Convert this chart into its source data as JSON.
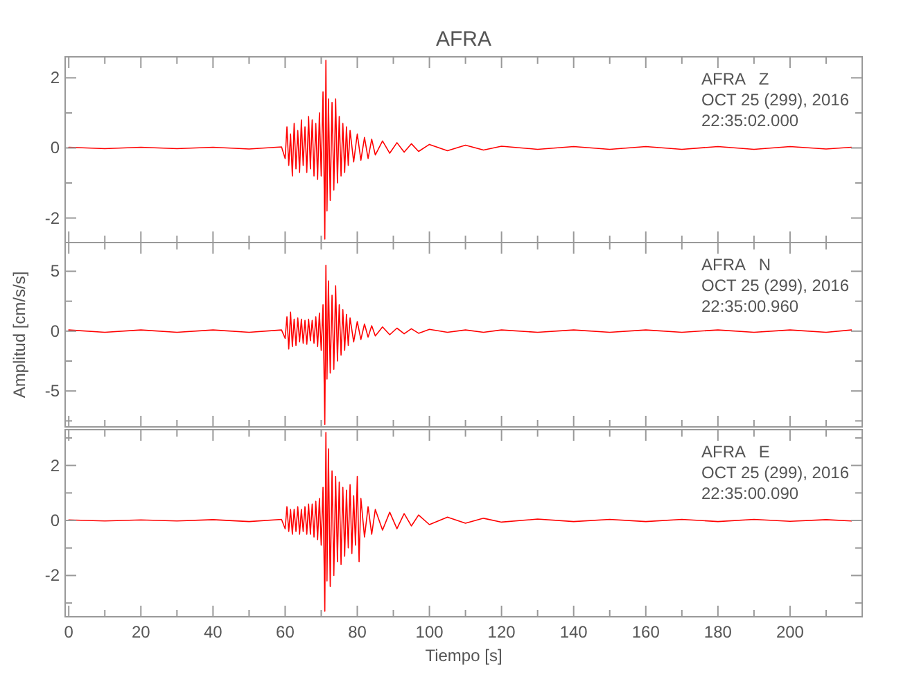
{
  "chart_data": [
    {
      "type": "line",
      "title": "AFRA",
      "annotations": [
        "AFRA   Z",
        "OCT 25 (299), 2016",
        "22:35:02.000"
      ],
      "xlim": [
        -1,
        220
      ],
      "ylim": [
        -2.7,
        2.6
      ],
      "tick_labels": "y",
      "grid": false,
      "xticks": [
        0,
        {
          "value": 10,
          "label": null
        },
        20,
        {
          "value": 30,
          "label": null
        },
        40,
        {
          "value": 50,
          "label": null
        },
        60,
        {
          "value": 70,
          "label": null
        },
        80,
        {
          "value": 90,
          "label": null
        },
        100,
        {
          "value": 110,
          "label": null
        },
        120,
        {
          "value": 130,
          "label": null
        },
        140,
        {
          "value": 150,
          "label": null
        },
        160,
        {
          "value": 170,
          "label": null
        },
        180,
        {
          "value": 190,
          "label": null
        },
        200,
        {
          "value": 210,
          "label": null
        }
      ],
      "yticks": [
        -2,
        {
          "value": -1,
          "label": null
        },
        0,
        {
          "value": 1,
          "label": null
        },
        2
      ],
      "series": [
        {
          "color": "#ff0000",
          "x": [
            0,
            10,
            20,
            30,
            40,
            50,
            59,
            60,
            60.5,
            61,
            61.5,
            62,
            62.5,
            63,
            63.5,
            64,
            64.5,
            65,
            65.5,
            66,
            66.5,
            67,
            67.5,
            68,
            68.5,
            69,
            69.5,
            70,
            70.5,
            71,
            71.3,
            71.6,
            72,
            72.5,
            73,
            73.5,
            74,
            74.5,
            75,
            75.5,
            76,
            76.5,
            77,
            77.5,
            78,
            79,
            80,
            81,
            82,
            83,
            84,
            85,
            87,
            89,
            91,
            93,
            95,
            97,
            100,
            105,
            110,
            115,
            120,
            130,
            140,
            150,
            160,
            170,
            180,
            190,
            200,
            210,
            217
          ],
          "values": [
            0.02,
            -0.02,
            0.02,
            -0.02,
            0.02,
            -0.03,
            0.03,
            -0.3,
            0.6,
            -0.5,
            0.4,
            -0.8,
            0.7,
            -0.6,
            0.5,
            -0.7,
            0.8,
            -0.5,
            0.6,
            -0.7,
            0.9,
            -0.6,
            0.8,
            -0.8,
            0.7,
            -0.9,
            1.0,
            -0.8,
            1.6,
            -2.6,
            2.5,
            -1.8,
            1.4,
            -1.5,
            1.3,
            -1.2,
            1.4,
            -1.0,
            0.9,
            -0.8,
            0.7,
            -0.7,
            0.6,
            -0.5,
            0.5,
            -0.4,
            0.4,
            -0.35,
            0.3,
            -0.3,
            0.25,
            -0.2,
            0.2,
            -0.15,
            0.15,
            -0.12,
            0.12,
            -0.1,
            0.1,
            -0.08,
            0.08,
            -0.06,
            0.05,
            -0.04,
            0.04,
            -0.04,
            0.04,
            -0.04,
            0.04,
            -0.04,
            0.04,
            -0.03,
            0.02
          ]
        }
      ]
    },
    {
      "type": "line",
      "ylabel": "Amplitud [cm/s/s]",
      "annotations": [
        "AFRA   N",
        "OCT 25 (299), 2016",
        "22:35:00.960"
      ],
      "xlim": [
        -1,
        220
      ],
      "ylim": [
        -8,
        7.4
      ],
      "tick_labels": "y",
      "grid": false,
      "xticks": [
        0,
        {
          "value": 10,
          "label": null
        },
        20,
        {
          "value": 30,
          "label": null
        },
        40,
        {
          "value": 50,
          "label": null
        },
        60,
        {
          "value": 70,
          "label": null
        },
        80,
        {
          "value": 90,
          "label": null
        },
        100,
        {
          "value": 110,
          "label": null
        },
        120,
        {
          "value": 130,
          "label": null
        },
        140,
        {
          "value": 150,
          "label": null
        },
        160,
        {
          "value": 170,
          "label": null
        },
        180,
        {
          "value": 190,
          "label": null
        },
        200,
        {
          "value": 210,
          "label": null
        }
      ],
      "yticks": [
        {
          "value": -7.5,
          "label": null
        },
        -5,
        {
          "value": -2.5,
          "label": null
        },
        0,
        {
          "value": 2.5,
          "label": null
        },
        5
      ],
      "series": [
        {
          "color": "#ff0000",
          "x": [
            0,
            10,
            20,
            30,
            40,
            50,
            59,
            60,
            60.5,
            61,
            61.5,
            62,
            62.5,
            63,
            63.5,
            64,
            64.5,
            65,
            65.5,
            66,
            66.5,
            67,
            67.5,
            68,
            68.5,
            69,
            69.5,
            70,
            70.5,
            71,
            71.3,
            71.6,
            72,
            72.5,
            73,
            73.5,
            74,
            74.5,
            75,
            75.5,
            76,
            76.5,
            77,
            77.5,
            78,
            79,
            80,
            81,
            82,
            83,
            84,
            85,
            87,
            89,
            91,
            93,
            95,
            97,
            100,
            105,
            110,
            115,
            120,
            130,
            140,
            150,
            160,
            170,
            180,
            190,
            200,
            210,
            217
          ],
          "values": [
            0.1,
            -0.1,
            0.1,
            -0.1,
            0.1,
            -0.1,
            0.1,
            -0.6,
            1.2,
            -1.5,
            1.6,
            -1.3,
            1.0,
            -1.2,
            1.1,
            -0.9,
            1.0,
            -1.0,
            0.9,
            -1.1,
            1.0,
            -0.8,
            0.9,
            -1.0,
            1.2,
            -1.3,
            1.5,
            -1.6,
            2.2,
            -7.8,
            5.5,
            -4.0,
            4.2,
            -3.5,
            3.0,
            -3.2,
            3.8,
            -2.5,
            2.2,
            -2.0,
            1.8,
            -1.6,
            1.4,
            -1.2,
            1.1,
            -0.9,
            0.8,
            -0.7,
            0.6,
            -0.5,
            0.45,
            -0.4,
            0.35,
            -0.3,
            0.25,
            -0.22,
            0.2,
            -0.18,
            0.15,
            -0.1,
            0.1,
            -0.1,
            0.1,
            -0.1,
            0.1,
            -0.1,
            0.1,
            -0.1,
            0.1,
            -0.1,
            0.1,
            -0.1,
            0.1
          ]
        }
      ]
    },
    {
      "type": "line",
      "xlabel": "Tiempo [s]",
      "annotations": [
        "AFRA   E",
        "OCT 25 (299), 2016",
        "22:35:00.090"
      ],
      "xlim": [
        -1,
        220
      ],
      "ylim": [
        -3.5,
        3.3
      ],
      "grid": false,
      "xticks": [
        0,
        {
          "value": 10,
          "label": null
        },
        20,
        {
          "value": 30,
          "label": null
        },
        40,
        {
          "value": 50,
          "label": null
        },
        60,
        {
          "value": 70,
          "label": null
        },
        80,
        {
          "value": 90,
          "label": null
        },
        100,
        {
          "value": 110,
          "label": null
        },
        120,
        {
          "value": 130,
          "label": null
        },
        140,
        {
          "value": 150,
          "label": null
        },
        160,
        {
          "value": 170,
          "label": null
        },
        180,
        {
          "value": 190,
          "label": null
        },
        200,
        {
          "value": 210,
          "label": null
        }
      ],
      "yticks": [
        {
          "value": -3,
          "label": null
        },
        -2,
        {
          "value": -1,
          "label": null
        },
        0,
        {
          "value": 1,
          "label": null
        },
        2,
        {
          "value": 3,
          "label": null
        }
      ],
      "series": [
        {
          "color": "#ff0000",
          "x": [
            0,
            10,
            20,
            30,
            40,
            50,
            59,
            60,
            60.5,
            61,
            61.5,
            62,
            62.5,
            63,
            63.5,
            64,
            64.5,
            65,
            65.5,
            66,
            66.5,
            67,
            67.5,
            68,
            68.5,
            69,
            69.5,
            70,
            70.5,
            71,
            71.3,
            71.6,
            72,
            72.5,
            73,
            73.5,
            74,
            74.5,
            75,
            75.5,
            76,
            76.5,
            77,
            77.5,
            78,
            78.5,
            79,
            79.5,
            80,
            80.5,
            81,
            82,
            83,
            84,
            85,
            87,
            89,
            91,
            93,
            95,
            97,
            100,
            105,
            110,
            115,
            120,
            130,
            140,
            150,
            160,
            170,
            180,
            190,
            200,
            210,
            217
          ],
          "values": [
            0.02,
            -0.02,
            0.02,
            -0.02,
            0.03,
            -0.04,
            0.04,
            -0.3,
            0.5,
            -0.4,
            0.4,
            -0.5,
            0.4,
            -0.4,
            0.5,
            -0.5,
            0.4,
            -0.4,
            0.5,
            -0.5,
            0.6,
            -0.5,
            0.6,
            -0.6,
            0.7,
            -0.7,
            0.8,
            -0.9,
            1.2,
            -3.3,
            3.2,
            -2.2,
            2.6,
            -2.4,
            1.8,
            -2.0,
            1.6,
            -1.5,
            1.4,
            -1.6,
            1.2,
            -1.3,
            1.1,
            -1.0,
            1.3,
            -1.2,
            0.9,
            -0.9,
            1.6,
            -1.5,
            0.8,
            -0.6,
            0.5,
            -0.5,
            0.4,
            -0.35,
            0.3,
            -0.3,
            0.25,
            -0.2,
            0.2,
            -0.15,
            0.12,
            -0.1,
            0.08,
            -0.06,
            0.05,
            -0.04,
            0.04,
            -0.04,
            0.04,
            -0.04,
            0.04,
            -0.03,
            0.03,
            -0.02
          ]
        }
      ]
    }
  ]
}
